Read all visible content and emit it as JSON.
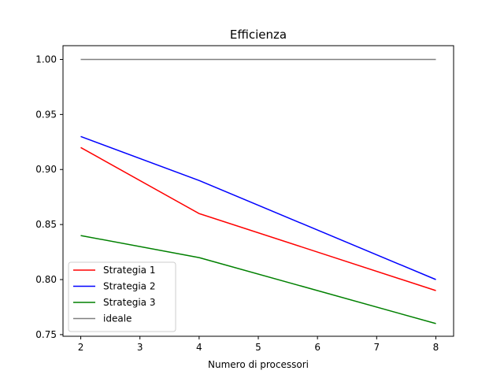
{
  "chart_data": {
    "type": "line",
    "title": "Efficienza",
    "xlabel": "Numero di processori",
    "ylabel": "",
    "x": [
      2,
      4,
      8
    ],
    "xticks": [
      2,
      3,
      4,
      5,
      6,
      7,
      8
    ],
    "yticks": [
      0.75,
      0.8,
      0.85,
      0.9,
      0.95,
      1.0
    ],
    "ytick_labels": [
      "0.75",
      "0.80",
      "0.85",
      "0.90",
      "0.95",
      "1.00"
    ],
    "xlim": [
      1.7,
      8.3
    ],
    "ylim": [
      0.7485,
      1.0125
    ],
    "grid": false,
    "legend_position": "lower-left",
    "series": [
      {
        "name": "Strategia 1",
        "color": "#ff0000",
        "values": [
          0.92,
          0.86,
          0.79
        ]
      },
      {
        "name": "Strategia 2",
        "color": "#0000ff",
        "values": [
          0.93,
          0.89,
          0.8
        ]
      },
      {
        "name": "Strategia 3",
        "color": "#008000",
        "values": [
          0.84,
          0.82,
          0.76
        ]
      },
      {
        "name": "ideale",
        "color": "#808080",
        "values": [
          1.0,
          1.0,
          1.0
        ]
      }
    ]
  }
}
